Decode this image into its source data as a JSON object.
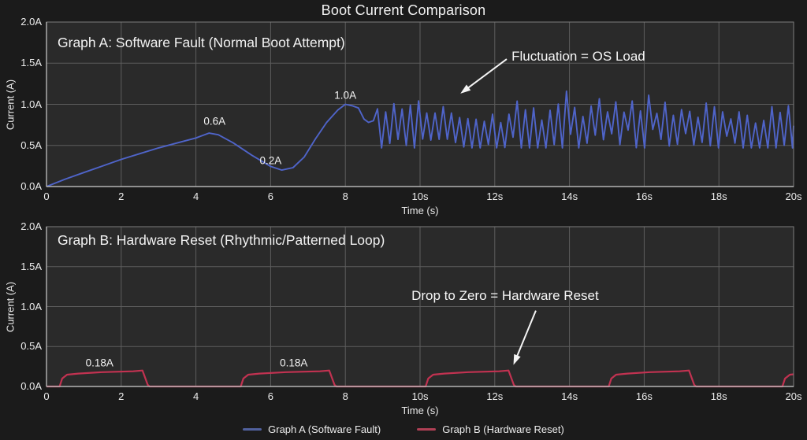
{
  "title": "Boot Current Comparison",
  "colors": {
    "page_bg": "#1b1b1b",
    "plot_bg": "#2a2a2a",
    "grid": "#5d5d5d",
    "spine": "#7d7d7d",
    "spine_bright": "#b5b5b5",
    "text": "#f2f2f2",
    "annotation": "#f5f5f5",
    "graph_a": "#4f64c9",
    "graph_b": "#c23251"
  },
  "legend": {
    "items": [
      {
        "label": "Graph A (Software Fault)",
        "color": "#51619e"
      },
      {
        "label": "Graph B (Hardware Reset)",
        "color": "#b04055"
      }
    ]
  },
  "chart_data": [
    {
      "type": "line",
      "name": "graph-a",
      "title": "Graph A: Software Fault (Normal Boot Attempt)",
      "xlabel": "Time (s)",
      "ylabel": "Current (A)",
      "xlim": [
        0,
        20
      ],
      "ylim": [
        0,
        2
      ],
      "grid": true,
      "x_ticks": [
        {
          "v": 0,
          "label": "0"
        },
        {
          "v": 2,
          "label": "2"
        },
        {
          "v": 4,
          "label": "4"
        },
        {
          "v": 6,
          "label": "6"
        },
        {
          "v": 8,
          "label": "8"
        },
        {
          "v": 10,
          "label": "10s"
        },
        {
          "v": 12,
          "label": "12s"
        },
        {
          "v": 14,
          "label": "14s"
        },
        {
          "v": 16,
          "label": "16s"
        },
        {
          "v": 18,
          "label": "18s"
        },
        {
          "v": 20,
          "label": "20s"
        }
      ],
      "y_ticks": [
        {
          "v": 0,
          "label": "0.0A"
        },
        {
          "v": 0.5,
          "label": "0.5A"
        },
        {
          "v": 1,
          "label": "1.0A"
        },
        {
          "v": 1.5,
          "label": "1.5A"
        },
        {
          "v": 2,
          "label": "2.0A"
        }
      ],
      "keypoints": [
        [
          0,
          0
        ],
        [
          0.5,
          0.09
        ],
        [
          1,
          0.17
        ],
        [
          1.5,
          0.25
        ],
        [
          2,
          0.33
        ],
        [
          2.5,
          0.4
        ],
        [
          3,
          0.47
        ],
        [
          3.5,
          0.53
        ],
        [
          4,
          0.59
        ],
        [
          4.35,
          0.65
        ],
        [
          4.6,
          0.63
        ],
        [
          5,
          0.53
        ],
        [
          5.5,
          0.38
        ],
        [
          6,
          0.245
        ],
        [
          6.3,
          0.2
        ],
        [
          6.6,
          0.23
        ],
        [
          6.9,
          0.36
        ],
        [
          7.2,
          0.58
        ],
        [
          7.5,
          0.78
        ],
        [
          7.8,
          0.93
        ],
        [
          8,
          1.0
        ],
        [
          8.2,
          0.98
        ],
        [
          8.35,
          0.955
        ],
        [
          8.5,
          0.82
        ],
        [
          8.62,
          0.78
        ],
        [
          8.75,
          0.8
        ]
      ],
      "noise": {
        "from": 8.86,
        "to": 20,
        "step": 0.11,
        "base": 0.74,
        "min": 0.47,
        "max": 1.16,
        "seed": 12,
        "description": "Irregular fluctuation between ~0.5A and ~1.1A representing OS load"
      },
      "point_labels": [
        {
          "label": "0.6A",
          "x": 4.5,
          "y": 0.79
        },
        {
          "label": "0.2A",
          "x": 6.0,
          "y": 0.315
        },
        {
          "label": "1.0A",
          "x": 8.0,
          "y": 1.11
        }
      ],
      "annotation": {
        "text": "Fluctuation = OS Load",
        "text_x": 12.45,
        "text_y": 1.58,
        "arrow": {
          "from": [
            12.32,
            1.55
          ],
          "to": [
            11.08,
            1.13
          ]
        }
      }
    },
    {
      "type": "line",
      "name": "graph-b",
      "title": "Graph B: Hardware Reset (Rhythmic/Patterned Loop)",
      "xlabel": "Time (s)",
      "ylabel": "Current (A)",
      "xlim": [
        0,
        20
      ],
      "ylim": [
        0,
        2
      ],
      "grid": true,
      "x_ticks": [
        {
          "v": 0,
          "label": "0"
        },
        {
          "v": 2,
          "label": "2"
        },
        {
          "v": 4,
          "label": "4"
        },
        {
          "v": 6,
          "label": "6"
        },
        {
          "v": 8,
          "label": "8"
        },
        {
          "v": 10,
          "label": "10s"
        },
        {
          "v": 12,
          "label": "12s"
        },
        {
          "v": 14,
          "label": "14s"
        },
        {
          "v": 16,
          "label": "16s"
        },
        {
          "v": 18,
          "label": "18s"
        },
        {
          "v": 20,
          "label": "20s"
        }
      ],
      "y_ticks": [
        {
          "v": 0,
          "label": "0.0A"
        },
        {
          "v": 0.5,
          "label": "0.5A"
        },
        {
          "v": 1,
          "label": "1.0A"
        },
        {
          "v": 1.5,
          "label": "1.5A"
        },
        {
          "v": 2,
          "label": "2.0A"
        }
      ],
      "pulses": [
        [
          0.35,
          2.62
        ],
        [
          5.2,
          7.62
        ],
        [
          10.15,
          12.42
        ],
        [
          15.05,
          17.25
        ],
        [
          19.7,
          20.3
        ]
      ],
      "pulse_level_start": 0.148,
      "pulse_level_end": 0.2,
      "baseline": 0,
      "point_labels": [
        {
          "label": "0.18A",
          "x": 1.42,
          "y": 0.3
        },
        {
          "label": "0.18A",
          "x": 6.62,
          "y": 0.3
        }
      ],
      "annotation": {
        "text": "Drop to Zero = Hardware Reset",
        "text_x": 9.77,
        "text_y": 1.13,
        "arrow": {
          "from": [
            13.1,
            0.95
          ],
          "to": [
            12.5,
            0.27
          ]
        }
      }
    }
  ]
}
